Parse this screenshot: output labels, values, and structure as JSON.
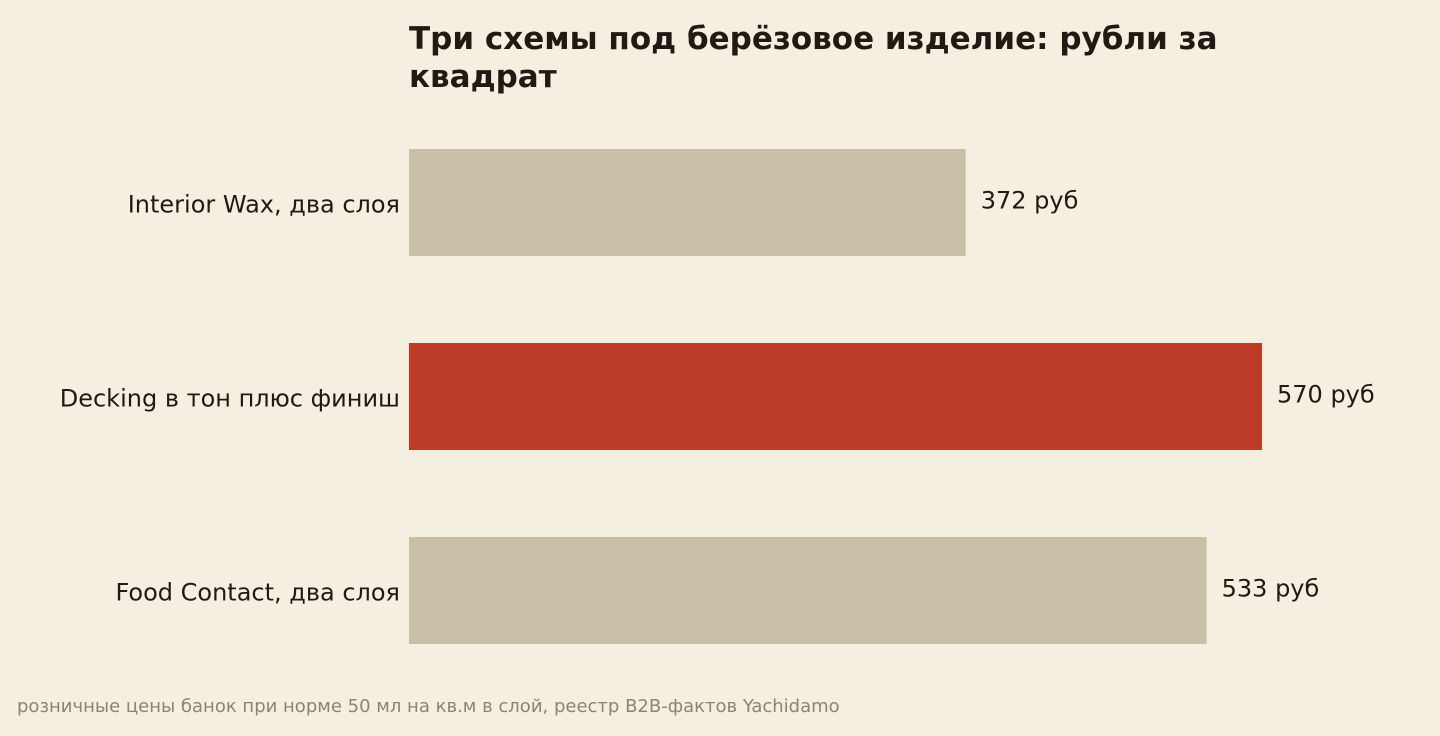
{
  "chart_data": {
    "type": "bar",
    "orientation": "horizontal",
    "title": "Три схемы под берёзовое изделие: рубли за квадрат",
    "categories": [
      "Interior Wax, два слоя",
      "Decking в тон плюс финиш",
      "Food Contact, два слоя"
    ],
    "values": [
      372,
      570,
      533
    ],
    "value_labels": [
      "372 руб",
      "570 руб",
      "533 руб"
    ],
    "unit": "руб",
    "highlight_index": 1,
    "xlim": [
      0,
      570
    ],
    "grid": false,
    "legend": "none",
    "colors": {
      "default": "#c9bfa7",
      "highlight": "#bc3c27",
      "text": "#1f1a12",
      "note": "#8a8377",
      "background": "#f5efe2"
    }
  },
  "footnote": "розничные цены банок при норме 50 мл на кв.м в слой, реестр B2B-фактов Yachidamo"
}
